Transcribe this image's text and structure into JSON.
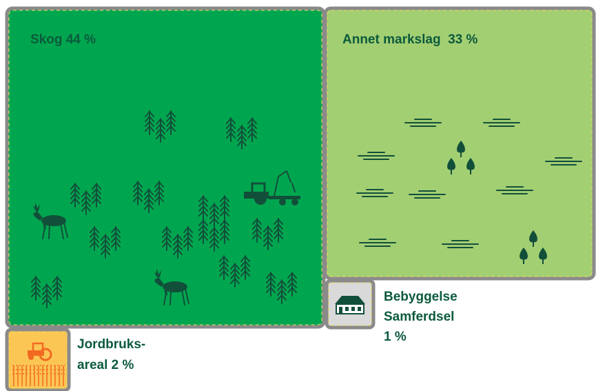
{
  "areas": [
    {
      "label": "Skog 44 %"
    },
    {
      "label": "Annet markslag  33 %"
    },
    {
      "label_lines": [
        "Bebyggelse",
        "Samferdsel",
        "1 %"
      ]
    },
    {
      "label_lines": [
        "Jordbruks-",
        "areal 2 %"
      ]
    }
  ]
}
